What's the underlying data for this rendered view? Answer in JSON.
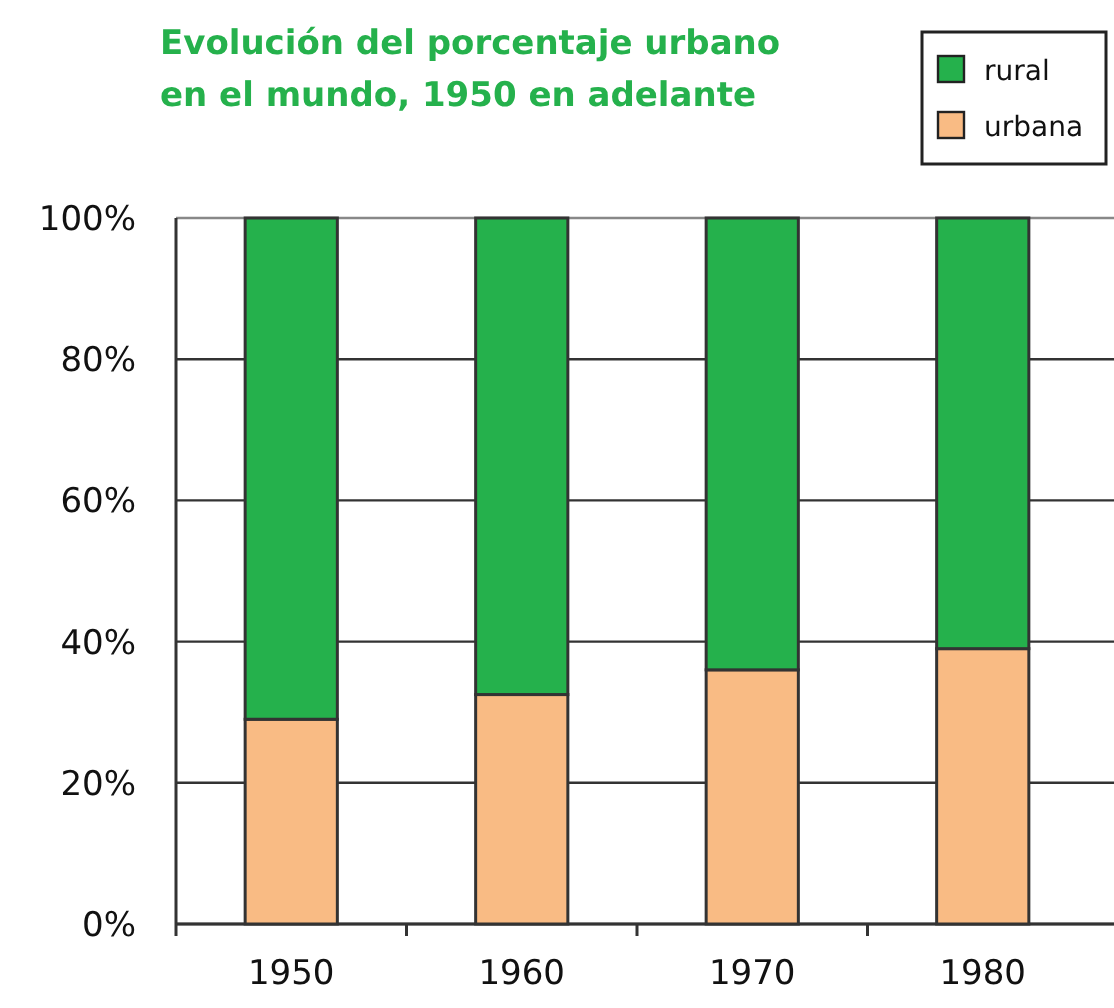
{
  "chart_data": {
    "type": "bar",
    "title": "Evolución del porcentaje urbano\nen el  mundo, 1950 en adelante",
    "categories": [
      "1950",
      "1960",
      "1970",
      "1980"
    ],
    "stacked": true,
    "series": [
      {
        "name": "urbana",
        "color": "#f9bb84",
        "values": [
          29,
          32.5,
          36,
          39
        ]
      },
      {
        "name": "rural",
        "color": "#25b14c",
        "values": [
          71,
          67.5,
          64,
          61
        ]
      }
    ],
    "ylim": [
      0,
      100
    ],
    "yticks": [
      {
        "value": 0,
        "label": "0%"
      },
      {
        "value": 20,
        "label": "20%"
      },
      {
        "value": 40,
        "label": "40%"
      },
      {
        "value": 60,
        "label": "60%"
      },
      {
        "value": 80,
        "label": "80%"
      },
      {
        "value": 100,
        "label": "100%"
      }
    ],
    "grid": "y",
    "legend": "top right"
  }
}
